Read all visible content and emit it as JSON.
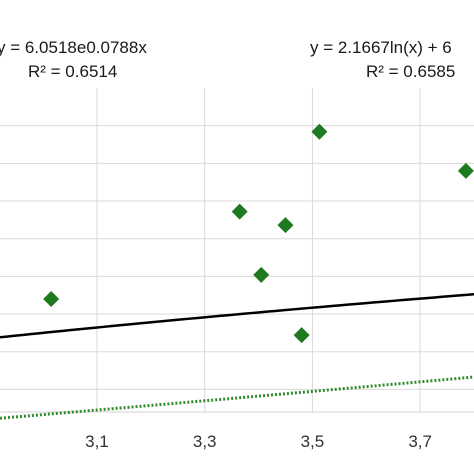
{
  "chart_data": {
    "type": "scatter",
    "xlim": [
      2.92,
      3.8
    ],
    "ylim": [
      7.7,
      12.0
    ],
    "x_ticks": [
      "3,1",
      "3,3",
      "3,5",
      "3,7"
    ],
    "x_tick_values": [
      3.1,
      3.3,
      3.5,
      3.7
    ],
    "y_gridlines": [
      8.0,
      8.5,
      9.0,
      9.5,
      10.0,
      10.5,
      11.0,
      11.5
    ],
    "grid": true,
    "points": [
      {
        "x": 3.015,
        "y": 9.2
      },
      {
        "x": 3.365,
        "y": 10.36
      },
      {
        "x": 3.405,
        "y": 9.52
      },
      {
        "x": 3.45,
        "y": 10.18
      },
      {
        "x": 3.48,
        "y": 8.72
      },
      {
        "x": 3.513,
        "y": 11.42
      },
      {
        "x": 3.785,
        "y": 10.9
      }
    ],
    "marker_color": "#1f7a1f",
    "trendlines": [
      {
        "type": "exponential",
        "a": 6.0518,
        "b": 0.0788,
        "equation": "y = 6.0518e0.0788x",
        "r2": "R² = 0.6514",
        "color": "#2e8b2e",
        "style": "dotted"
      },
      {
        "type": "logarithmic",
        "a": 2.1667,
        "c": 6.37,
        "equation": "y = 2.1667ln(x) + 6",
        "r2": "R² = 0.6585",
        "color": "#000000",
        "style": "solid"
      }
    ]
  }
}
